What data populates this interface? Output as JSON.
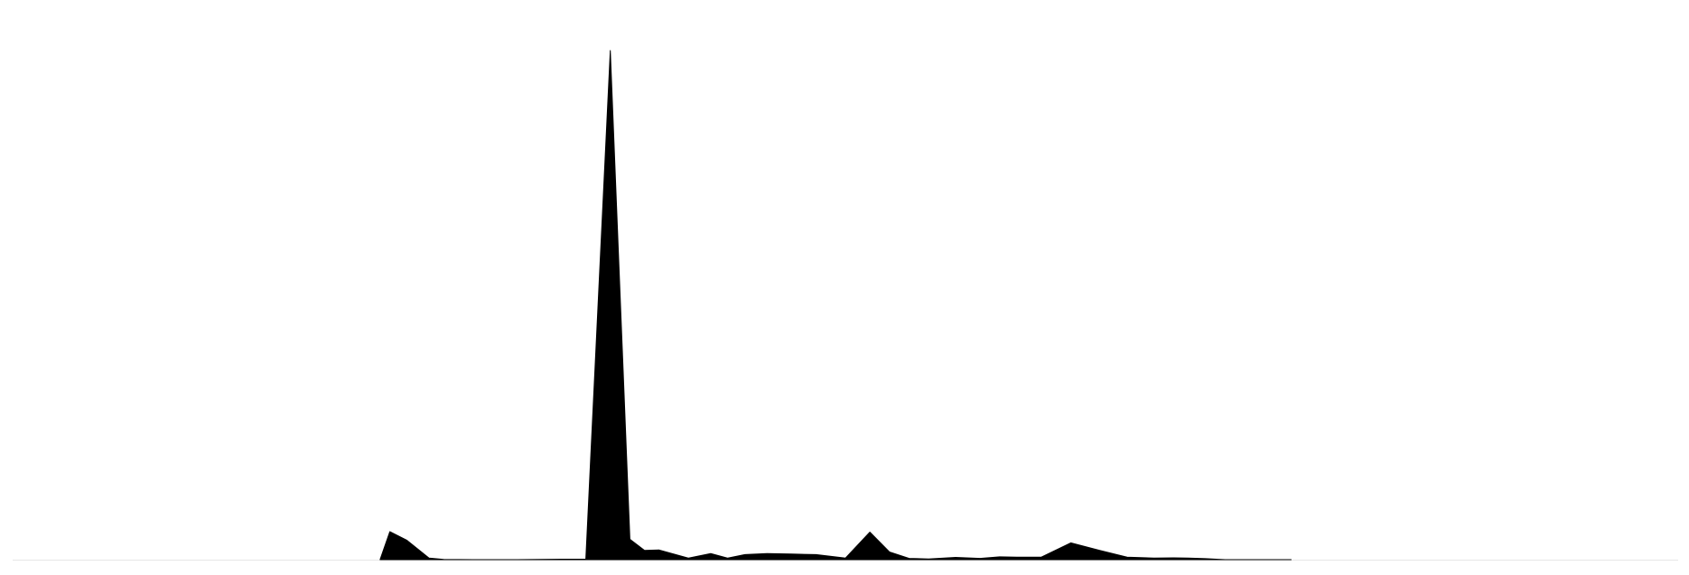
{
  "chart_data": {
    "type": "area",
    "title": "",
    "xlabel": "",
    "ylabel": "",
    "grid": false,
    "legend": "none",
    "fill_color": "#000000",
    "baseline_color": "#e6e6e6",
    "x": [
      0.0,
      0.4,
      1.1,
      2.0,
      2.6,
      3.8,
      4.7,
      5.6,
      6.5,
      7.4,
      8.4,
      9.4,
      10.2,
      10.8,
      11.4,
      12.6,
      13.5,
      14.2,
      14.9,
      15.8,
      16.8,
      17.8,
      19.0,
      20.0,
      20.8,
      21.6,
      22.4,
      23.5,
      24.5,
      25.3,
      26.0,
      27.0,
      28.2,
      29.4,
      30.5,
      31.6,
      32.4,
      33.0,
      33.7,
      34.5,
      35.4,
      36.3,
      37.2
    ],
    "y": [
      0.0,
      5.5,
      3.8,
      0.3,
      0.05,
      0.0,
      0.0,
      0.0,
      0.05,
      0.08,
      0.1,
      100.0,
      4.0,
      1.8,
      1.9,
      0.3,
      1.2,
      0.3,
      1.0,
      1.2,
      1.1,
      1.0,
      0.3,
      5.4,
      1.5,
      0.25,
      0.15,
      0.45,
      0.25,
      0.55,
      0.5,
      0.5,
      3.3,
      1.8,
      0.5,
      0.3,
      0.35,
      0.3,
      0.2,
      0.0,
      0.0,
      0.0,
      0.0
    ],
    "xlim": [
      -15,
      53
    ],
    "ylim": [
      0,
      100
    ]
  }
}
